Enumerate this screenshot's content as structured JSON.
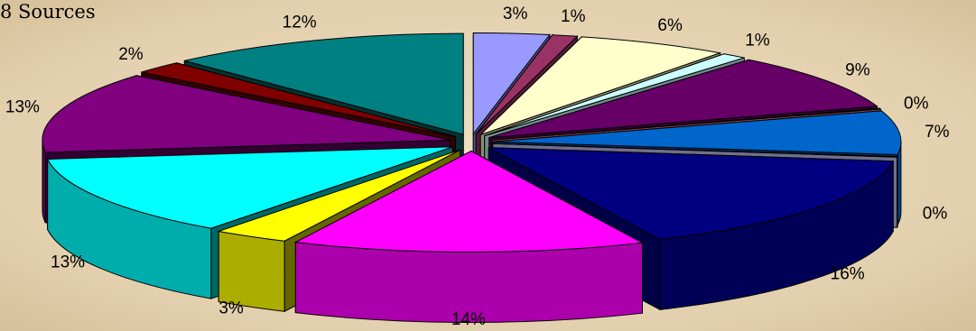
{
  "chart_data": {
    "type": "pie",
    "title": "8 Sources",
    "values": [
      3,
      1,
      6,
      1,
      9,
      0,
      7,
      0,
      16,
      14,
      3,
      13,
      13,
      2,
      12
    ],
    "labels": [
      "3%",
      "1%",
      "6%",
      "1%",
      "9%",
      "0%",
      "7%",
      "0%",
      "16%",
      "14%",
      "3%",
      "13%",
      "13%",
      "2%",
      "12%"
    ],
    "colors": [
      "#9999ff",
      "#993366",
      "#ffffcc",
      "#ccffff",
      "#660066",
      "#ff8080",
      "#0066cc",
      "#ccccff",
      "#000080",
      "#ff00ff",
      "#ffff00",
      "#00ffff",
      "#800080",
      "#800000",
      "#008080"
    ],
    "style": "3d-exploded",
    "legend": "none"
  }
}
